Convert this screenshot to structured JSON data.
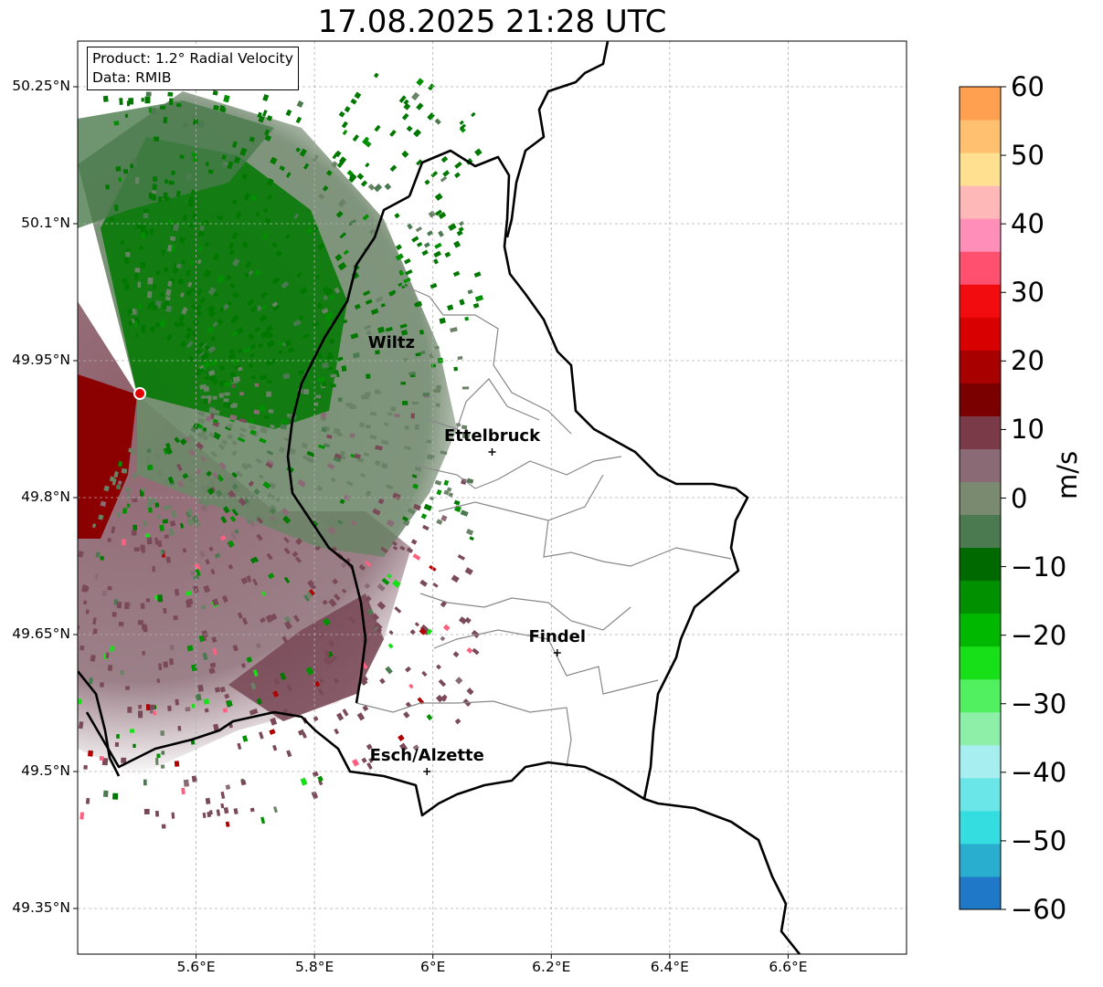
{
  "title": "17.08.2025 21:28 UTC",
  "info": {
    "product": "Product: 1.2° Radial Velocity",
    "data_source": "Data: RMIB"
  },
  "axes": {
    "lat_ticks": [
      "50.25°N",
      "50.1°N",
      "49.95°N",
      "49.8°N",
      "49.65°N",
      "49.5°N",
      "49.35°N"
    ],
    "lon_ticks": [
      "5.6°E",
      "5.8°E",
      "6°E",
      "6.2°E",
      "6.4°E",
      "6.6°E"
    ],
    "lat_values": [
      50.25,
      50.1,
      49.95,
      49.8,
      49.65,
      49.5,
      49.35
    ],
    "lon_values": [
      5.6,
      5.8,
      6.0,
      6.2,
      6.4,
      6.6
    ],
    "lat_range": [
      49.3,
      50.3
    ],
    "lon_range": [
      5.4,
      6.8
    ],
    "grid": true
  },
  "colorbar": {
    "unit": "m/s",
    "ticks": [
      "60",
      "50",
      "40",
      "30",
      "20",
      "10",
      "0",
      "−10",
      "−20",
      "−30",
      "−40",
      "−50",
      "−60"
    ],
    "range": [
      -60,
      60
    ],
    "colors": [
      "#1f78c8",
      "#2aaed0",
      "#33dde0",
      "#6ae6e8",
      "#a6eef0",
      "#8ef0a8",
      "#50f060",
      "#18e018",
      "#00b800",
      "#009000",
      "#006a00",
      "#4c7a50",
      "#7a8a70",
      "#8a6a74",
      "#7a3a48",
      "#7a0000",
      "#a80000",
      "#d80000",
      "#f20c10",
      "#ff5070",
      "#ff8fb8",
      "#ffb8b8",
      "#ffe090",
      "#ffc070",
      "#ffa050"
    ]
  },
  "cities": [
    {
      "name": "Wiltz",
      "lat": 49.97,
      "lon": 5.93,
      "marker": false
    },
    {
      "name": "Ettelbruck",
      "lat": 49.85,
      "lon": 6.1,
      "marker": true
    },
    {
      "name": "Findel",
      "lat": 49.63,
      "lon": 6.21,
      "marker": true
    },
    {
      "name": "Esch/Alzette",
      "lat": 49.5,
      "lon": 5.99,
      "marker": true
    }
  ],
  "radar_site": {
    "lat": 49.914,
    "lon": 5.505,
    "color": "#e00000"
  },
  "colors": {
    "outbound_dark": "#8b0000",
    "near_zero_pink": "#8a6470",
    "near_zero_green": "#6a8266",
    "inbound_green": "#007800",
    "border": "#000000",
    "district_line": "#888888"
  }
}
